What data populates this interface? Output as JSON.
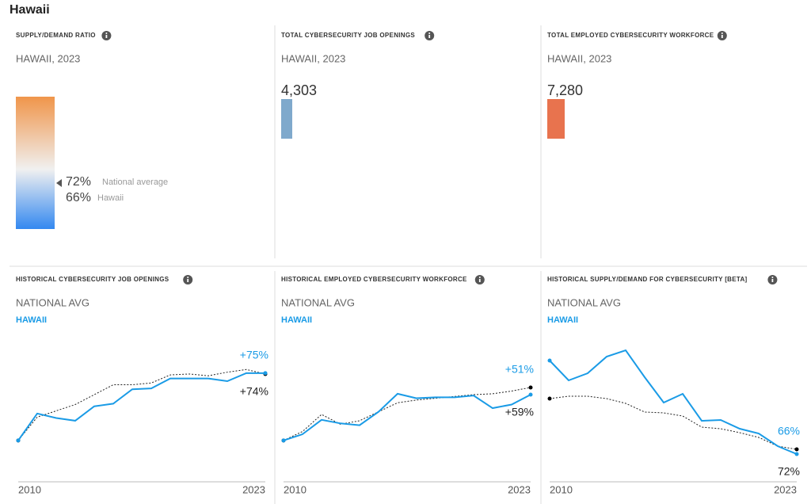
{
  "title": "Hawaii",
  "panels": [
    {
      "title": "SUPPLY/DEMAND RATIO",
      "subtitle": "HAWAII, 2023",
      "national_value": "72%",
      "national_label": "National average",
      "hawaii_value": "66%",
      "hawaii_label": "Hawaii"
    },
    {
      "title": "TOTAL CYBERSECURITY JOB OPENINGS",
      "subtitle": "HAWAII, 2023",
      "value": "4,303",
      "color": "#7fa9cc"
    },
    {
      "title": "TOTAL EMPLOYED CYBERSECURITY WORKFORCE",
      "subtitle": "HAWAII, 2023",
      "value": "7,280",
      "color": "#e8734e"
    }
  ],
  "chart_data": [
    {
      "type": "line",
      "title": "HISTORICAL CYBERSECURITY JOB OPENINGS",
      "categories": [
        "2010",
        null,
        null,
        null,
        null,
        null,
        null,
        null,
        null,
        null,
        null,
        null,
        null,
        "2023"
      ],
      "ylim": [
        -46,
        111
      ],
      "series": [
        {
          "name": "NATIONAL AVG",
          "color": "#222222",
          "dotted": true,
          "values": [
            0,
            26,
            33,
            40,
            51,
            62,
            62,
            64,
            73,
            74,
            72,
            76,
            79,
            74
          ],
          "end_label": "+74%"
        },
        {
          "name": "HAWAII",
          "color": "#1a9be6",
          "dotted": false,
          "values": [
            0,
            30,
            25,
            22,
            38,
            41,
            57,
            58,
            69,
            69,
            69,
            66,
            75,
            75
          ],
          "end_label": "+75%"
        }
      ]
    },
    {
      "type": "line",
      "title": "HISTORICAL EMPLOYED CYBERSECURITY WORKFORCE",
      "categories": [
        "2010",
        null,
        null,
        null,
        null,
        null,
        null,
        null,
        null,
        null,
        null,
        null,
        null,
        "2023"
      ],
      "ylim": [
        -46,
        111
      ],
      "series": [
        {
          "name": "NATIONAL AVG",
          "color": "#222222",
          "dotted": true,
          "values": [
            0,
            10,
            29,
            18,
            22,
            32,
            42,
            45,
            47,
            49,
            51,
            52,
            55,
            59
          ],
          "end_label": "+59%"
        },
        {
          "name": "HAWAII",
          "color": "#1a9be6",
          "dotted": false,
          "values": [
            0,
            7,
            23,
            19,
            17,
            32,
            52,
            47,
            48,
            48,
            50,
            36,
            40,
            51
          ],
          "end_label": "+51%"
        }
      ]
    },
    {
      "type": "line",
      "title": "HISTORICAL SUPPLY/DEMAND FOR CYBERSECURITY [BETA]",
      "categories": [
        "2010",
        null,
        null,
        null,
        null,
        null,
        null,
        null,
        null,
        null,
        null,
        null,
        null,
        "2023"
      ],
      "ylim": [
        31,
        209
      ],
      "series": [
        {
          "name": "NATIONAL AVG",
          "color": "#222222",
          "dotted": true,
          "values": [
            136,
            139,
            139,
            136,
            130,
            119,
            118,
            114,
            100,
            98,
            93,
            87,
            76,
            72
          ],
          "end_label": "72%"
        },
        {
          "name": "HAWAII",
          "color": "#1a9be6",
          "dotted": false,
          "values": [
            184,
            159,
            168,
            189,
            197,
            163,
            131,
            142,
            108,
            109,
            98,
            92,
            76,
            66
          ],
          "end_label": "66%"
        }
      ]
    }
  ]
}
